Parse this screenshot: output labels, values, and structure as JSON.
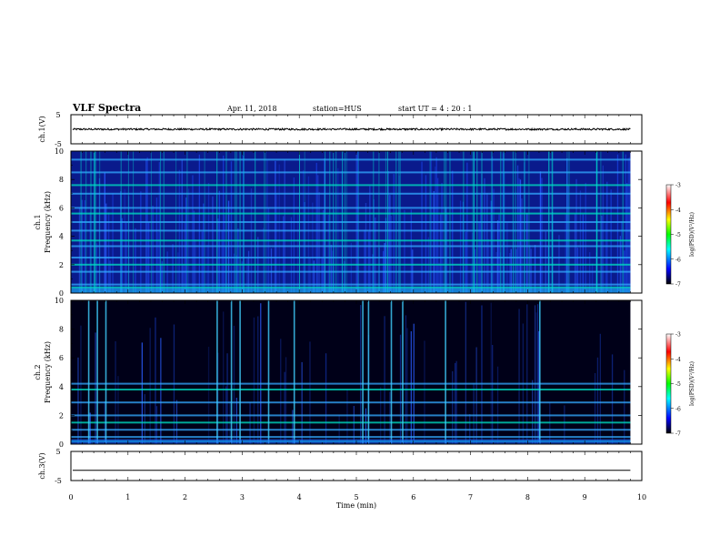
{
  "header": {
    "title": "VLF Spectra",
    "date": "Apr. 11, 2018",
    "station": "station=HUS",
    "start": "start  UT =   4 : 20 : 1"
  },
  "colors": {
    "spec_low": "#000044",
    "spec_mid": "#1e3cff",
    "spec_high": "#00e0c0",
    "colorbar": [
      "#000000",
      "#0000ff",
      "#00ffff",
      "#00ff00",
      "#ffff00",
      "#ff0000",
      "#ffffff"
    ]
  },
  "chart_data": [
    {
      "type": "line",
      "ylabel": "ch.1(V)",
      "ylim": [
        -5,
        5
      ],
      "y_ticks": [
        "5",
        "-5"
      ],
      "mean_value": 0,
      "noise_amplitude": 0.3
    },
    {
      "type": "heatmap",
      "ylabel": "ch.1\nFrequency (kHz)",
      "ylim": [
        0,
        10
      ],
      "y_ticks": [
        "0",
        "2",
        "4",
        "6",
        "8",
        "10"
      ],
      "colorbar": {
        "label": "log(PSD)(V²/Hz)",
        "range": [
          -7,
          -3
        ],
        "ticks": [
          "-3",
          "-4",
          "-5",
          "-6",
          "-7"
        ]
      },
      "tone_lines_khz": [
        0.4,
        0.6,
        1.5,
        2.0,
        2.5,
        3.3,
        3.7,
        4.4,
        5.0,
        5.6,
        6.0,
        7.0,
        7.6,
        8.5,
        9.4
      ],
      "background_level": 0.45
    },
    {
      "type": "heatmap",
      "ylabel": "ch.2\nFrequency (kHz)",
      "ylim": [
        0,
        10
      ],
      "y_ticks": [
        "0",
        "2",
        "4",
        "6",
        "8",
        "10"
      ],
      "colorbar": {
        "label": "log(PSD)(V²/Hz)",
        "range": [
          -7,
          -3
        ],
        "ticks": [
          "-3",
          "-4",
          "-5",
          "-6",
          "-7"
        ]
      },
      "tone_lines_khz": [
        0.2,
        0.5,
        1.0,
        1.5,
        2.0,
        2.9,
        3.8,
        4.2
      ],
      "bright_spikes_min": [
        0.3,
        0.45,
        0.6,
        2.55,
        2.8,
        2.95,
        3.45,
        3.9,
        5.1,
        5.2,
        5.6,
        5.8,
        6.55,
        8.2
      ],
      "background_level": 0.15
    },
    {
      "type": "line",
      "ylabel": "ch.3(V)",
      "ylim": [
        -5,
        5
      ],
      "y_ticks": [
        "5",
        "-5"
      ],
      "mean_value": -1.5,
      "noise_amplitude": 0
    }
  ],
  "x_axis": {
    "label": "Time (min)",
    "xlim": [
      0,
      10
    ],
    "ticks": [
      "0",
      "1",
      "2",
      "3",
      "4",
      "5",
      "6",
      "7",
      "8",
      "9",
      "10"
    ],
    "data_end_min": 9.8
  }
}
